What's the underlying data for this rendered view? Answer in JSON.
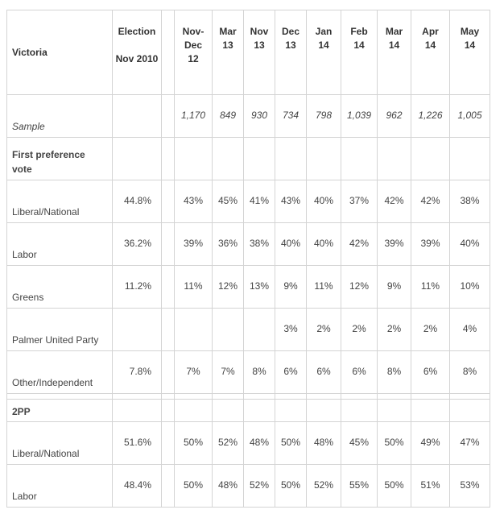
{
  "table": {
    "region": "Victoria",
    "election_header": "Election\n\nNov 2010",
    "columns": [
      "Nov-\nDec\n12",
      "Mar\n13",
      "Nov\n13",
      "Dec\n13",
      "Jan\n14",
      "Feb\n14",
      "Mar\n14",
      "Apr\n14",
      "May\n14"
    ],
    "sample_label": "Sample",
    "sample_values": [
      "1,170",
      "849",
      "930",
      "734",
      "798",
      "1,039",
      "962",
      "1,226",
      "1,005"
    ],
    "section1_label": "First preference vote",
    "rows1": [
      {
        "label": "Liberal/National",
        "election": "44.8%",
        "values": [
          "43%",
          "45%",
          "41%",
          "43%",
          "40%",
          "37%",
          "42%",
          "42%",
          "38%"
        ]
      },
      {
        "label": "Labor",
        "election": "36.2%",
        "values": [
          "39%",
          "36%",
          "38%",
          "40%",
          "40%",
          "42%",
          "39%",
          "39%",
          "40%"
        ]
      },
      {
        "label": "Greens",
        "election": "11.2%",
        "values": [
          "11%",
          "12%",
          "13%",
          "9%",
          "11%",
          "12%",
          "9%",
          "11%",
          "10%"
        ]
      },
      {
        "label": "Palmer United Party",
        "election": "",
        "values": [
          "",
          "",
          "",
          "3%",
          "2%",
          "2%",
          "2%",
          "2%",
          "4%"
        ]
      },
      {
        "label": "Other/Independent",
        "election": "7.8%",
        "values": [
          "7%",
          "7%",
          "8%",
          "6%",
          "6%",
          "6%",
          "8%",
          "6%",
          "8%"
        ]
      }
    ],
    "section2_label": "2PP",
    "rows2": [
      {
        "label": "Liberal/National",
        "election": "51.6%",
        "values": [
          "50%",
          "52%",
          "48%",
          "50%",
          "48%",
          "45%",
          "50%",
          "49%",
          "47%"
        ]
      },
      {
        "label": "Labor",
        "election": "48.4%",
        "values": [
          "50%",
          "48%",
          "52%",
          "50%",
          "52%",
          "55%",
          "50%",
          "51%",
          "53%"
        ]
      }
    ]
  }
}
